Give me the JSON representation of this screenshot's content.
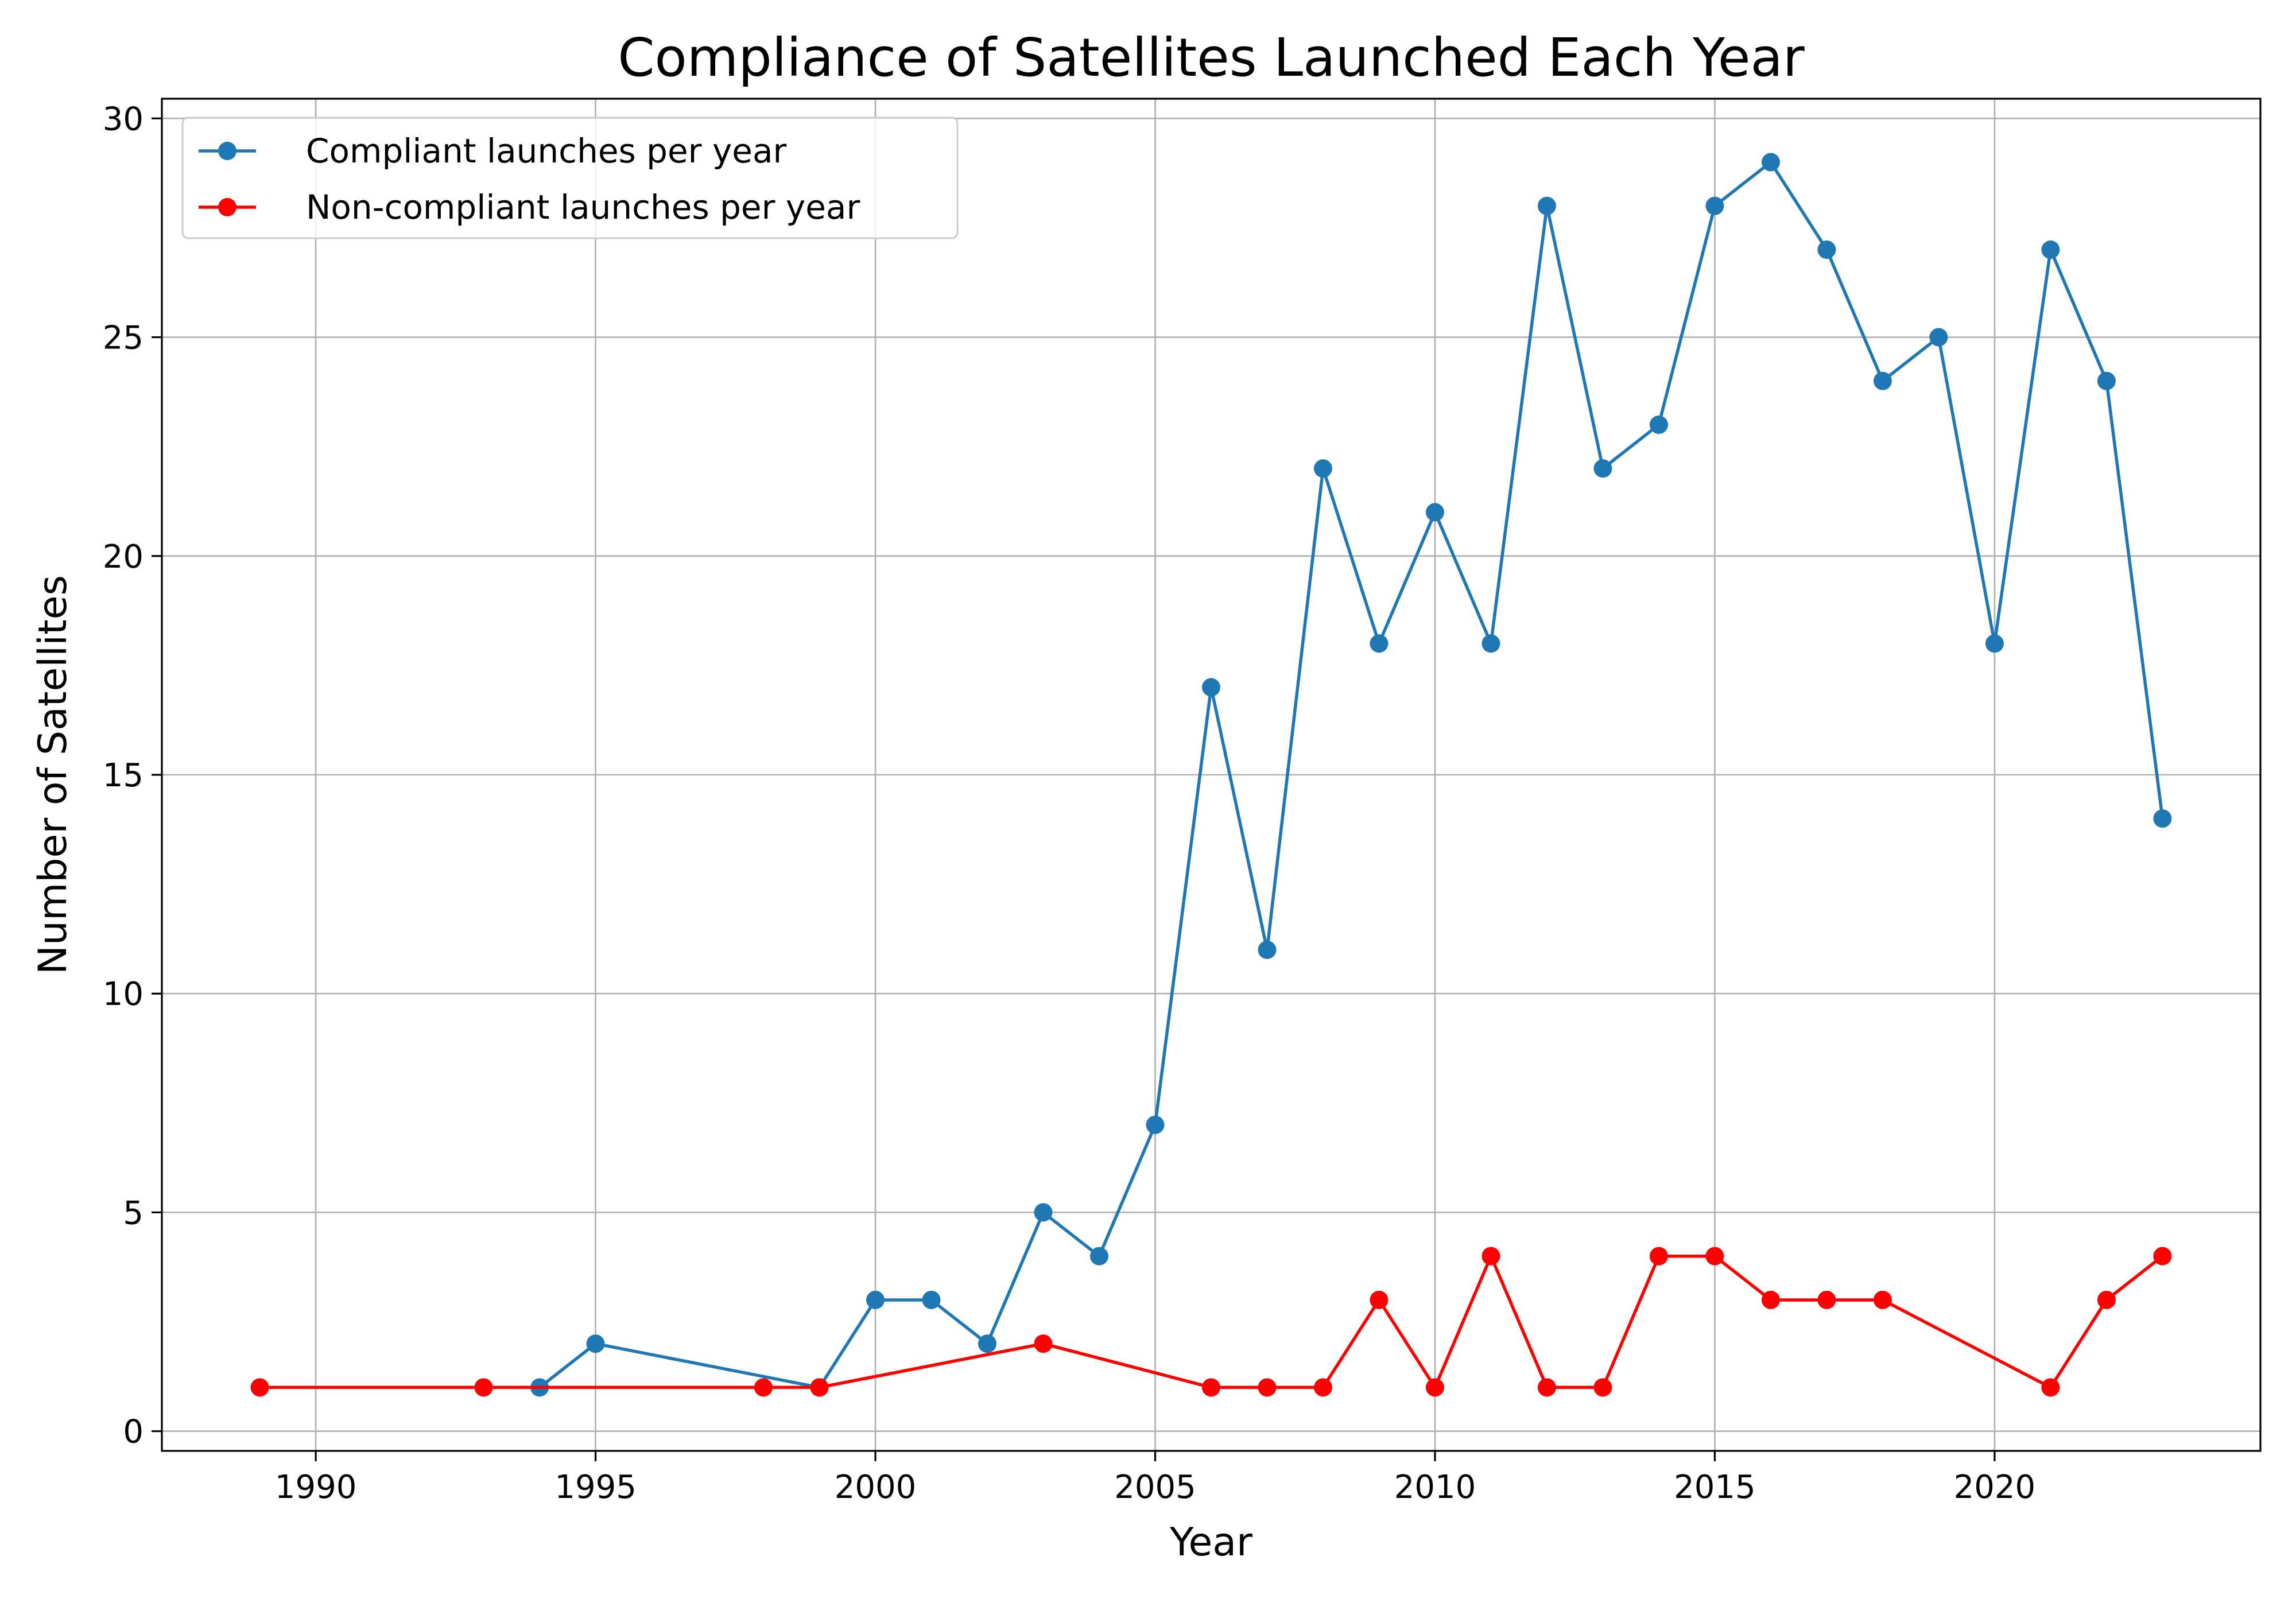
{
  "chart_data": {
    "type": "line",
    "title": "Compliance of Satellites Launched Each Year",
    "xlabel": "Year",
    "ylabel": "Number of Satellites",
    "xlim": [
      1987.25,
      2024.75
    ],
    "ylim": [
      -0.45,
      30.45
    ],
    "xticks": [
      1990,
      1995,
      2000,
      2005,
      2010,
      2015,
      2020
    ],
    "yticks": [
      0,
      5,
      10,
      15,
      20,
      25,
      30
    ],
    "grid": true,
    "legend_position": "top-left",
    "series": [
      {
        "name": "Compliant launches per year",
        "color": "#1f77b4",
        "marker": "circle",
        "x": [
          1994,
          1995,
          1999,
          2000,
          2001,
          2002,
          2003,
          2004,
          2005,
          2006,
          2007,
          2008,
          2009,
          2010,
          2011,
          2012,
          2013,
          2014,
          2015,
          2016,
          2017,
          2018,
          2019,
          2020,
          2021,
          2022,
          2023
        ],
        "y": [
          1,
          2,
          1,
          3,
          3,
          2,
          5,
          4,
          7,
          17,
          11,
          22,
          18,
          21,
          18,
          28,
          22,
          23,
          28,
          29,
          27,
          24,
          25,
          18,
          27,
          24,
          14
        ]
      },
      {
        "name": "Non-compliant launches per year",
        "color": "#ff0000",
        "marker": "circle",
        "x": [
          1989,
          1993,
          1998,
          1999,
          2003,
          2006,
          2007,
          2008,
          2009,
          2010,
          2011,
          2012,
          2013,
          2014,
          2015,
          2016,
          2017,
          2018,
          2021,
          2022,
          2023
        ],
        "y": [
          1,
          1,
          1,
          1,
          2,
          1,
          1,
          1,
          3,
          1,
          4,
          1,
          1,
          4,
          4,
          3,
          3,
          3,
          1,
          3,
          4
        ]
      }
    ]
  }
}
